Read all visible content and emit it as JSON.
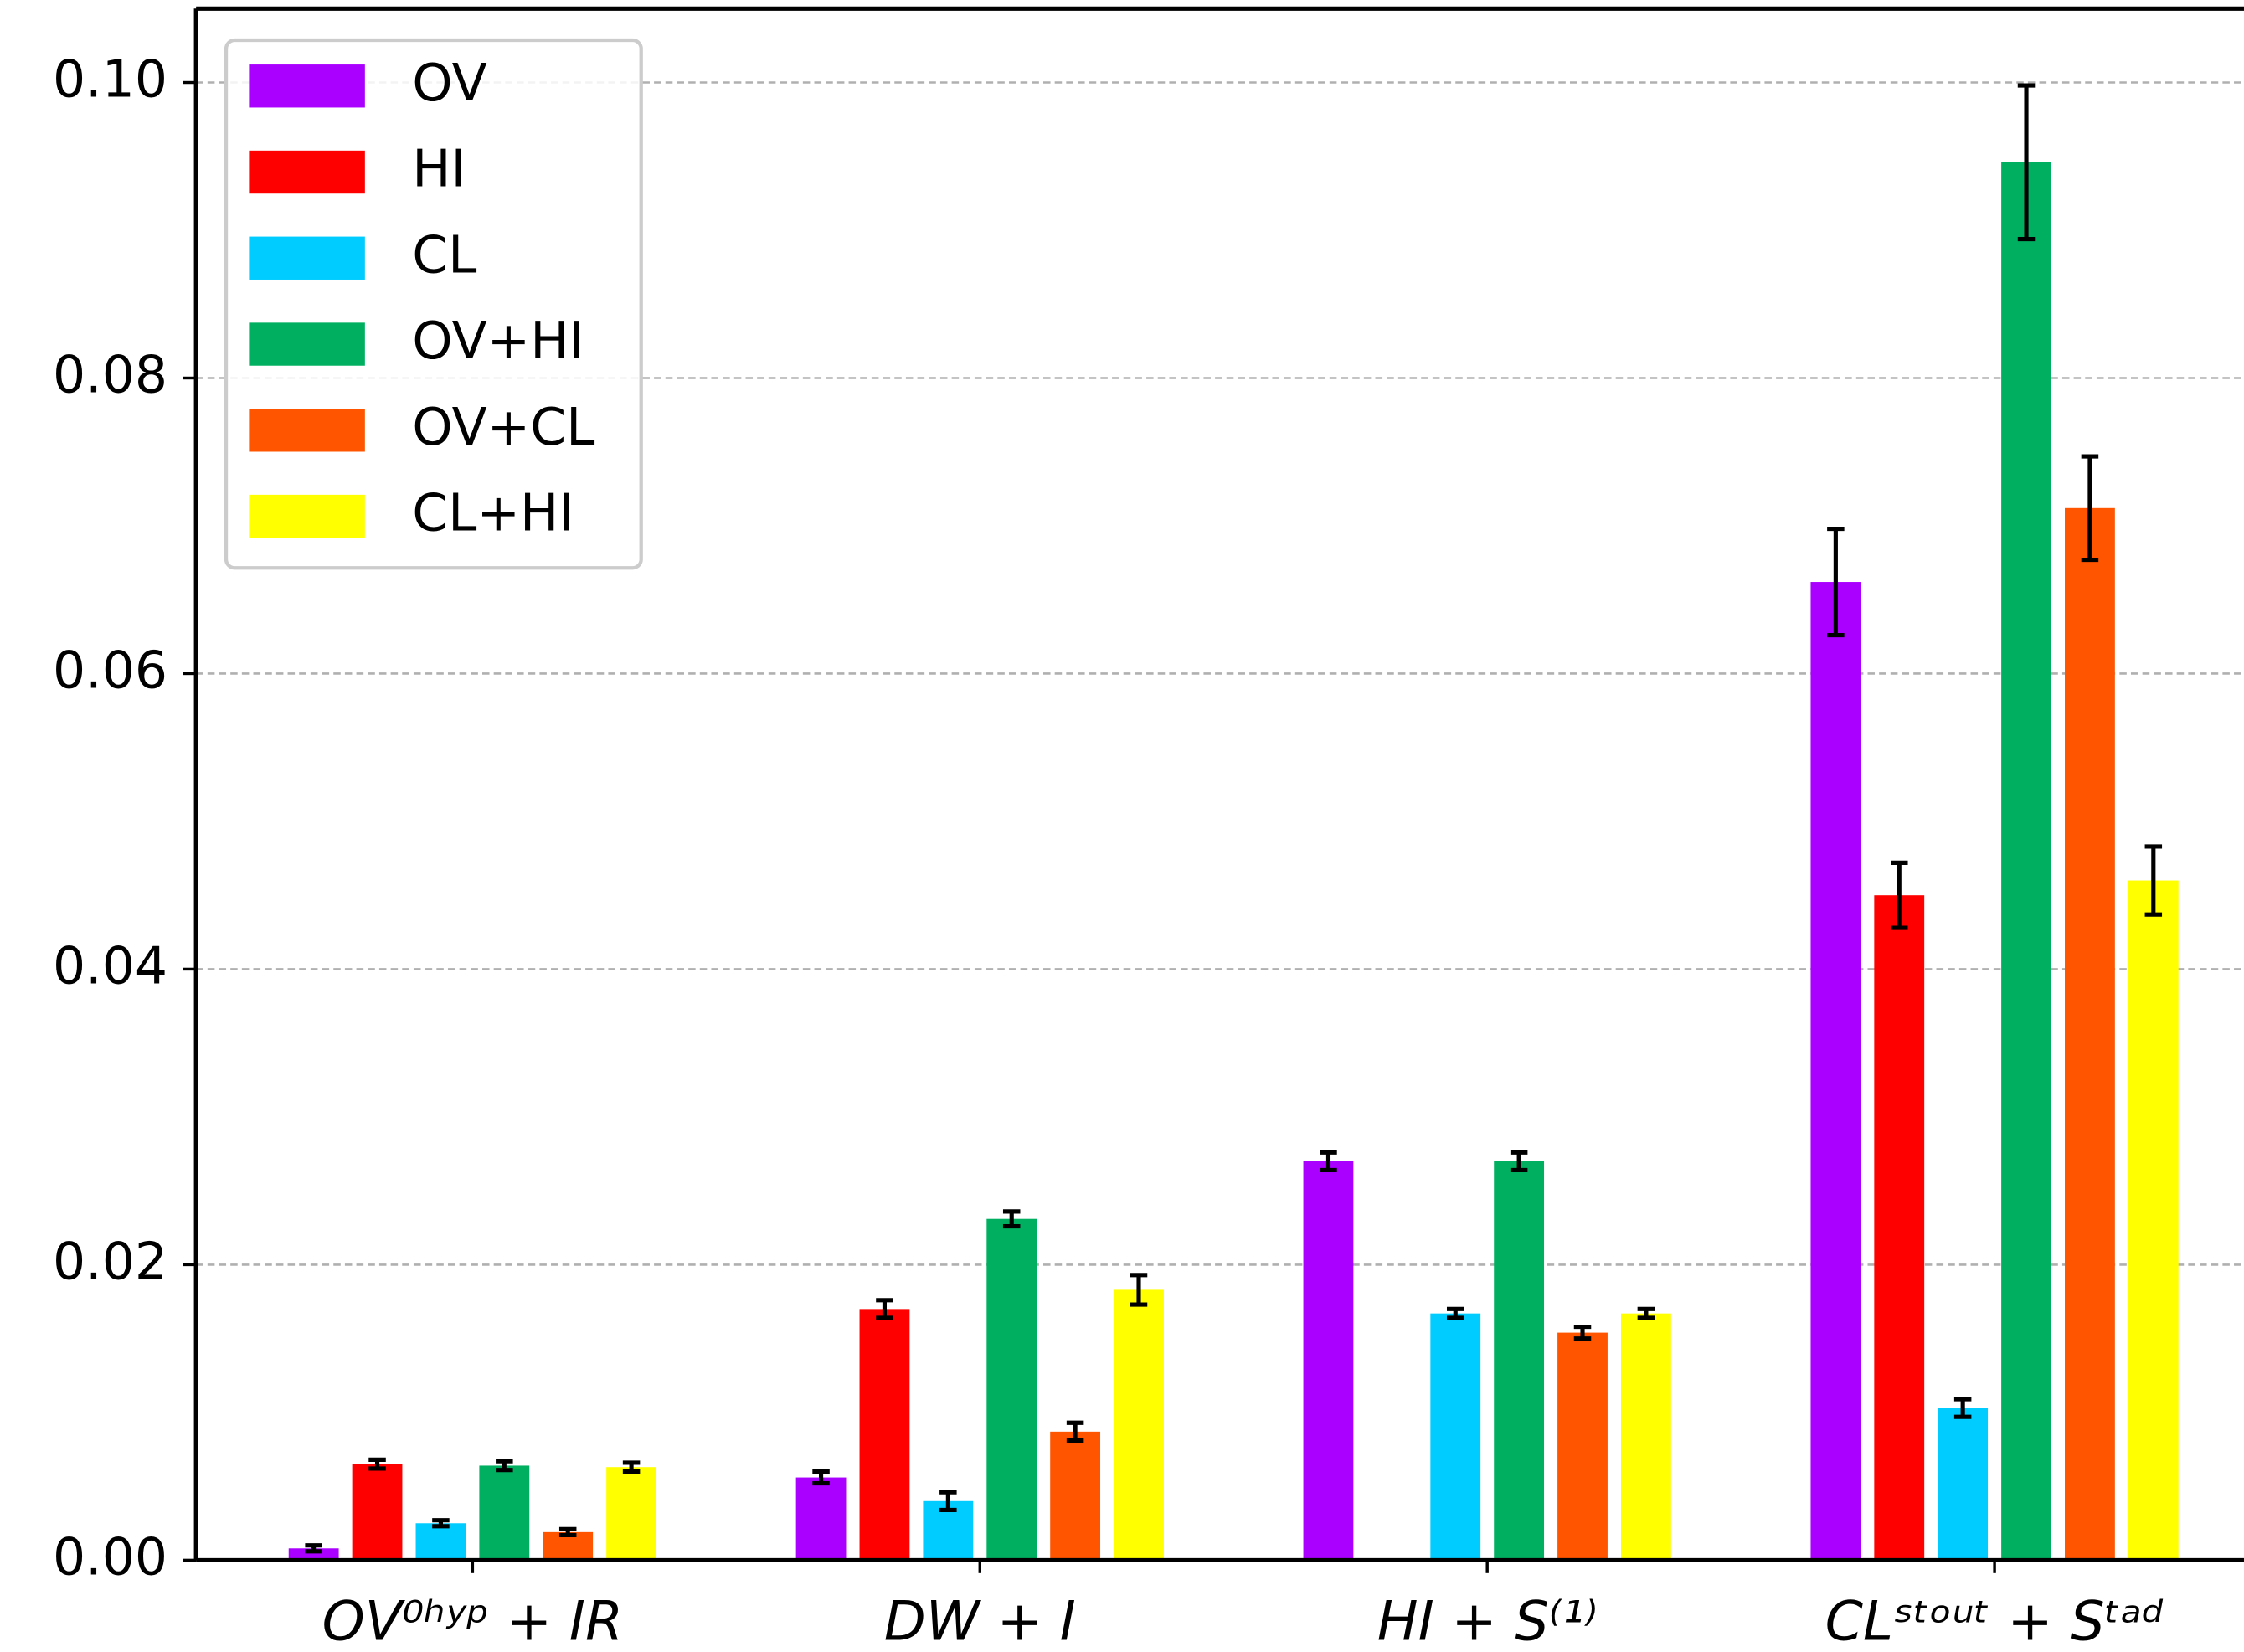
{
  "chart_data": {
    "type": "bar",
    "categories": [
      "OV⁰ʰʸᵖ + IR",
      "DW + I",
      "HI + S⁽¹⁾",
      "CLˢᵗᵒᵘᵗ + Sᵗᵃᵈ"
    ],
    "series": [
      {
        "name": "OV",
        "color": "#aa00ff",
        "values": [
          0.0008,
          0.0056,
          0.027,
          0.0662
        ],
        "errors": [
          0.0002,
          0.0004,
          0.0006,
          0.0036
        ]
      },
      {
        "name": "HI",
        "color": "#ff0000",
        "values": [
          0.0065,
          0.017,
          0.0001,
          0.045
        ],
        "errors": [
          0.0003,
          0.0006,
          0,
          0.0022
        ]
      },
      {
        "name": "CL",
        "color": "#00ccff",
        "values": [
          0.0025,
          0.004,
          0.0167,
          0.0103
        ],
        "errors": [
          0.0002,
          0.0006,
          0.0003,
          0.0006
        ]
      },
      {
        "name": "OV+HI",
        "color": "#00b060",
        "values": [
          0.0064,
          0.0231,
          0.027,
          0.0946
        ],
        "errors": [
          0.0003,
          0.0005,
          0.0006,
          0.0052
        ]
      },
      {
        "name": "OV+CL",
        "color": "#ff5500",
        "values": [
          0.0019,
          0.0087,
          0.0154,
          0.0712
        ],
        "errors": [
          0.0002,
          0.0006,
          0.0004,
          0.0035
        ]
      },
      {
        "name": "CL+HI",
        "color": "#ffff00",
        "values": [
          0.0063,
          0.0183,
          0.0167,
          0.046
        ],
        "errors": [
          0.0003,
          0.001,
          0.0003,
          0.0023
        ]
      }
    ],
    "ylim": [
      0,
      0.105
    ],
    "yticks": [
      {
        "value": 0,
        "label": "0.00"
      },
      {
        "value": 0.02,
        "label": "0.02"
      },
      {
        "value": 0.04,
        "label": "0.04"
      },
      {
        "value": 0.06,
        "label": "0.06"
      },
      {
        "value": 0.08,
        "label": "0.08"
      },
      {
        "value": 0.1,
        "label": "0.10"
      }
    ],
    "grid": true,
    "legend": "upper left"
  }
}
